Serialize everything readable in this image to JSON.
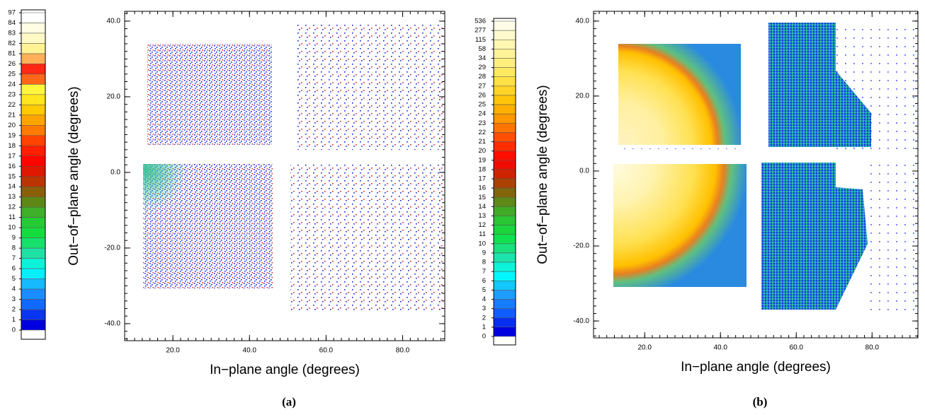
{
  "chart_data": [
    {
      "type": "scatter",
      "panel_label": "(a)",
      "xlabel": "In−plane angle (degrees)",
      "ylabel": "Out−of−plane angle (degrees)",
      "xlim": [
        7.4,
        91
      ],
      "ylim": [
        -44.5,
        42.6
      ],
      "xticks": [
        {
          "value": 20,
          "label": "20.0"
        },
        {
          "value": 40,
          "label": "40.0"
        },
        {
          "value": 60,
          "label": "60.0"
        },
        {
          "value": 80,
          "label": "80.0"
        }
      ],
      "yticks": [
        {
          "value": -40,
          "label": "-40.0"
        },
        {
          "value": -20,
          "label": "-20.0"
        },
        {
          "value": 0,
          "label": "0.0"
        },
        {
          "value": 20,
          "label": "20.0"
        },
        {
          "value": 40,
          "label": "40.0"
        }
      ],
      "colorbar_ticks": [
        97,
        84,
        83,
        82,
        81,
        26,
        25,
        24,
        23,
        22,
        21,
        20,
        19,
        18,
        17,
        16,
        15,
        14,
        13,
        12,
        11,
        10,
        9,
        8,
        7,
        6,
        5,
        4,
        3,
        2,
        1,
        0
      ],
      "colormap": [
        "#ffffff",
        "#fffbd0",
        "#fff07a",
        "#ff0000",
        "#ffff40",
        "#ffd000",
        "#ff9000",
        "#ff3000",
        "#ff0000",
        "#c03000",
        "#6a7a10",
        "#30c030",
        "#10e040",
        "#20e0a0",
        "#00ffff",
        "#20a0ff",
        "#1060ff",
        "#0000e0"
      ]
    },
    {
      "type": "heatmap",
      "panel_label": "(b)",
      "xlabel": "In−plane angle (degrees)",
      "ylabel": "Out−of−plane angle (degrees)",
      "xlim": [
        6.5,
        92.1
      ],
      "ylim": [
        -44.5,
        42.6
      ],
      "xticks": [
        {
          "value": 20,
          "label": "20.0"
        },
        {
          "value": 40,
          "label": "40.0"
        },
        {
          "value": 60,
          "label": "60.0"
        },
        {
          "value": 80,
          "label": "80.0"
        }
      ],
      "yticks": [
        {
          "value": -40,
          "label": "-40.0"
        },
        {
          "value": -20,
          "label": "-20.0"
        },
        {
          "value": 0,
          "label": "0.0"
        },
        {
          "value": 20,
          "label": "20.0"
        },
        {
          "value": 40,
          "label": "40.0"
        }
      ],
      "colorbar_ticks": [
        536,
        277,
        115,
        58,
        34,
        29,
        28,
        27,
        26,
        25,
        24,
        23,
        22,
        21,
        20,
        19,
        18,
        17,
        16,
        15,
        14,
        13,
        12,
        11,
        10,
        9,
        8,
        7,
        6,
        5,
        4,
        3,
        2,
        1,
        0
      ],
      "colormap": [
        "#fffde8",
        "#fff7b0",
        "#fff07a",
        "#ffe040",
        "#ffc000",
        "#ff9000",
        "#ff4000",
        "#ff0000",
        "#c03000",
        "#6a7a10",
        "#30c030",
        "#10e040",
        "#20e0a0",
        "#00ffff",
        "#20a0ff",
        "#1060ff",
        "#0000e0"
      ]
    }
  ]
}
